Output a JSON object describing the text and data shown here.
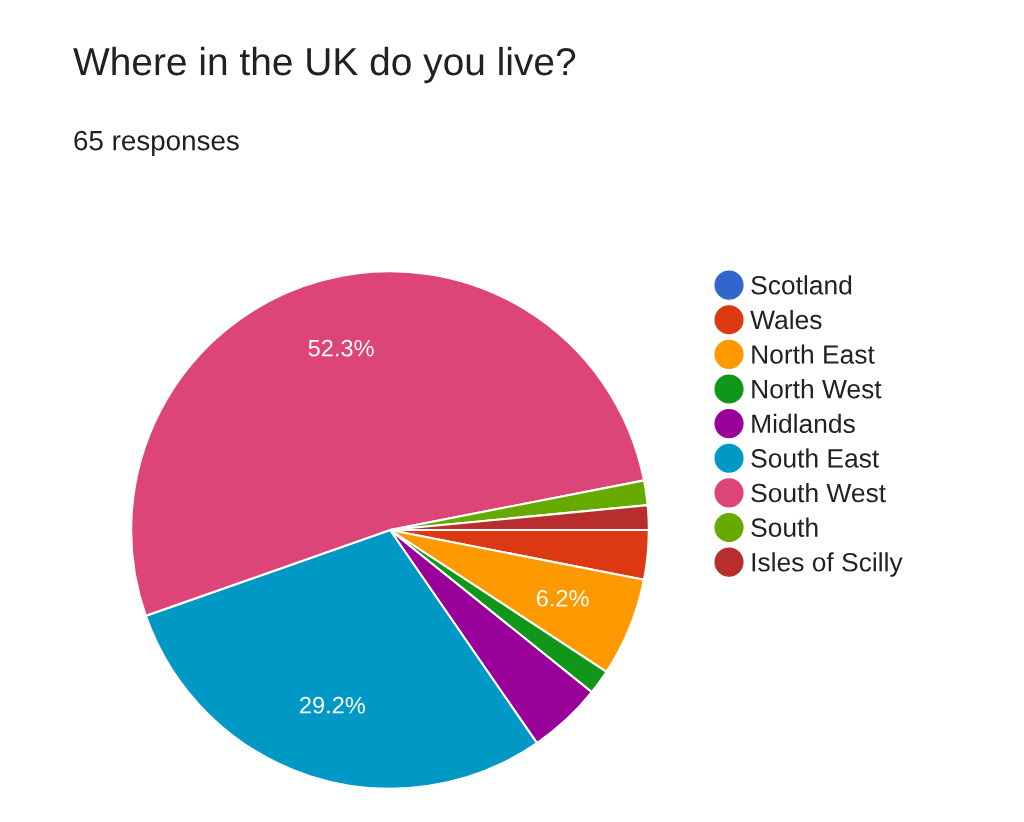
{
  "chart_data": {
    "type": "pie",
    "title": "Where in the UK do you live?",
    "subtitle": "65 responses",
    "categories": [
      "Scotland",
      "Wales",
      "North East",
      "North West",
      "Midlands",
      "South East",
      "South West",
      "South",
      "Isles of Scilly"
    ],
    "values": [
      0,
      3.08,
      6.15,
      1.54,
      4.62,
      29.23,
      52.31,
      1.54,
      1.53
    ],
    "value_labels": [
      null,
      null,
      "6.2%",
      null,
      null,
      "29.2%",
      "52.3%",
      null,
      null
    ],
    "colors": [
      "#3366cc",
      "#dc3912",
      "#ff9900",
      "#109618",
      "#990099",
      "#0099c6",
      "#dd4477",
      "#66aa00",
      "#b82e2e"
    ],
    "legend": "right"
  }
}
